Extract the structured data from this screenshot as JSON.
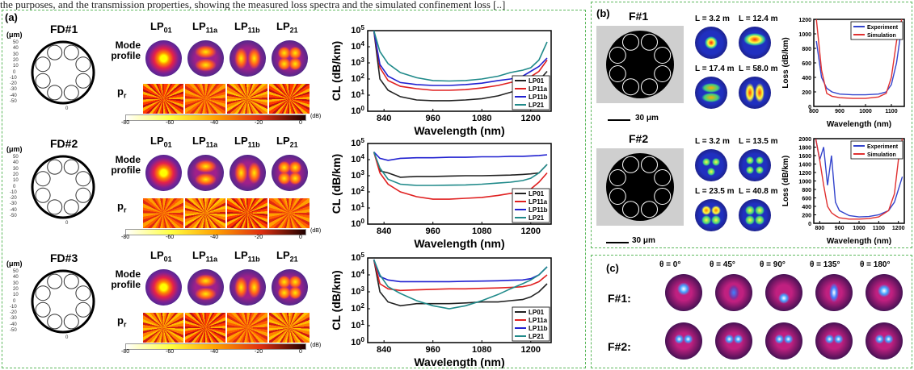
{
  "caption": "the purposes, and the transmission properties, showing the measured loss spectra and the simulated confinement loss [..]",
  "panel_a": {
    "label": "(a)",
    "unit_label": "(μm)",
    "y_ticks": [
      "50",
      "40",
      "30",
      "20",
      "10",
      "0",
      "-10",
      "-20",
      "-30",
      "-40",
      "-50"
    ],
    "x_tick": "0",
    "mode_profile_label": "Mode profile",
    "pr_label": "p",
    "pr_sub": "r",
    "mode_names": [
      {
        "base": "LP",
        "sub": "01"
      },
      {
        "base": "LP",
        "sub": "11a"
      },
      {
        "base": "LP",
        "sub": "11b"
      },
      {
        "base": "LP",
        "sub": "21"
      }
    ],
    "colorbar_ticks": [
      "-80",
      "-60",
      "-40",
      "-20",
      "0"
    ],
    "colorbar_unit": "(dB)",
    "designs": [
      {
        "name": "FD#1"
      },
      {
        "name": "FD#2"
      },
      {
        "name": "FD#3"
      }
    ]
  },
  "panel_b": {
    "label": "(b)",
    "fibers": [
      {
        "name": "F#1",
        "lengths": [
          "L = 3.2 m",
          "L = 12.4 m",
          "L = 17.4 m",
          "L = 58.0 m"
        ],
        "scale_bar": "30 μm"
      },
      {
        "name": "F#2",
        "lengths": [
          "L = 3.2 m",
          "L = 13.5 m",
          "L = 23.5 m",
          "L = 40.8 m"
        ],
        "scale_bar": "30 μm"
      }
    ]
  },
  "panel_c": {
    "label": "(c)",
    "angles": [
      "θ = 0°",
      "θ = 45°",
      "θ = 90°",
      "θ = 135°",
      "θ = 180°"
    ],
    "rows": [
      "F#1:",
      "F#2:"
    ]
  },
  "chart_data": [
    {
      "type": "line",
      "title": "",
      "xlabel": "Wavelength (nm)",
      "ylabel": "CL (dB/km)",
      "xlim": [
        800,
        1250
      ],
      "ylim": [
        1,
        100000
      ],
      "yscale": "log",
      "x_ticks": [
        "840",
        "960",
        "1080",
        "1200"
      ],
      "y_ticks": [
        "10^0",
        "10^1",
        "10^2",
        "10^3",
        "10^4",
        "10^5"
      ],
      "legend_position": "bottom-right",
      "series": [
        {
          "name": "LP01",
          "color": "#222222",
          "x": [
            815,
            830,
            850,
            880,
            920,
            960,
            1000,
            1040,
            1080,
            1120,
            1150,
            1180,
            1200,
            1220,
            1240
          ],
          "y": [
            100000,
            100,
            20,
            8,
            5,
            4.5,
            4.5,
            5,
            6,
            9,
            15,
            25,
            40,
            80,
            300
          ]
        },
        {
          "name": "LP11a",
          "color": "#e02020",
          "x": [
            815,
            830,
            850,
            880,
            920,
            960,
            1000,
            1040,
            1080,
            1120,
            1150,
            1180,
            1200,
            1220,
            1240
          ],
          "y": [
            100000,
            500,
            80,
            35,
            25,
            20,
            20,
            22,
            28,
            40,
            60,
            90,
            140,
            300,
            1500
          ]
        },
        {
          "name": "LP11b",
          "color": "#2020d0",
          "x": [
            815,
            830,
            850,
            880,
            920,
            960,
            1000,
            1040,
            1080,
            1120,
            1150,
            1180,
            1200,
            1220,
            1240
          ],
          "y": [
            100000,
            800,
            150,
            60,
            45,
            40,
            40,
            45,
            55,
            80,
            100,
            150,
            300,
            600,
            2000
          ]
        },
        {
          "name": "LP21",
          "color": "#208a8a",
          "x": [
            815,
            830,
            850,
            880,
            920,
            960,
            1000,
            1040,
            1080,
            1120,
            1150,
            1180,
            1200,
            1220,
            1240
          ],
          "y": [
            100000,
            5000,
            900,
            250,
            120,
            80,
            75,
            80,
            100,
            150,
            250,
            350,
            500,
            1500,
            20000
          ]
        }
      ]
    },
    {
      "type": "line",
      "title": "",
      "xlabel": "Wavelength (nm)",
      "ylabel": "CL (dB/km)",
      "xlim": [
        800,
        1250
      ],
      "ylim": [
        1,
        100000
      ],
      "yscale": "log",
      "x_ticks": [
        "840",
        "960",
        "1080",
        "1200"
      ],
      "y_ticks": [
        "10^0",
        "10^1",
        "10^2",
        "10^3",
        "10^4",
        "10^5"
      ],
      "legend_position": "bottom-right",
      "series": [
        {
          "name": "LP01",
          "color": "#222222",
          "x": [
            815,
            830,
            850,
            880,
            920,
            960,
            1000,
            1040,
            1080,
            1120,
            1150,
            1180,
            1200,
            1220,
            1240
          ],
          "y": [
            30000,
            2000,
            1500,
            800,
            900,
            900,
            950,
            1000,
            1000,
            1050,
            1100,
            1200,
            1300,
            1500,
            5000
          ]
        },
        {
          "name": "LP11a",
          "color": "#e02020",
          "x": [
            815,
            830,
            850,
            880,
            920,
            960,
            1000,
            1040,
            1080,
            1120,
            1150,
            1180,
            1200,
            1220,
            1240
          ],
          "y": [
            30000,
            1500,
            300,
            100,
            50,
            35,
            35,
            40,
            45,
            60,
            80,
            100,
            150,
            400,
            1500
          ]
        },
        {
          "name": "LP11b",
          "color": "#2020d0",
          "x": [
            815,
            830,
            850,
            880,
            920,
            960,
            1000,
            1040,
            1080,
            1120,
            1150,
            1180,
            1200,
            1220,
            1240
          ],
          "y": [
            30000,
            12000,
            9000,
            12000,
            13000,
            13000,
            14000,
            14000,
            15000,
            15000,
            16000,
            16000,
            17000,
            18000,
            20000
          ]
        },
        {
          "name": "LP21",
          "color": "#208a8a",
          "x": [
            815,
            830,
            850,
            880,
            920,
            960,
            1000,
            1040,
            1080,
            1120,
            1150,
            1180,
            1200,
            1220,
            1240
          ],
          "y": [
            30000,
            3000,
            600,
            300,
            250,
            250,
            260,
            270,
            300,
            350,
            400,
            500,
            700,
            1500,
            5000
          ]
        }
      ]
    },
    {
      "type": "line",
      "title": "",
      "xlabel": "Wavelength (nm)",
      "ylabel": "CL (dB/km)",
      "xlim": [
        800,
        1250
      ],
      "ylim": [
        1,
        100000
      ],
      "yscale": "log",
      "x_ticks": [
        "840",
        "960",
        "1080",
        "1200"
      ],
      "y_ticks": [
        "10^0",
        "10^1",
        "10^2",
        "10^3",
        "10^4",
        "10^5"
      ],
      "legend_position": "bottom-right",
      "series": [
        {
          "name": "LP01",
          "color": "#222222",
          "x": [
            815,
            830,
            850,
            880,
            920,
            960,
            1000,
            1040,
            1080,
            1120,
            1150,
            1180,
            1200,
            1220,
            1240
          ],
          "y": [
            80000,
            1000,
            250,
            150,
            200,
            200,
            200,
            220,
            250,
            250,
            300,
            350,
            500,
            1000,
            3000
          ]
        },
        {
          "name": "LP11a",
          "color": "#e02020",
          "x": [
            815,
            830,
            850,
            880,
            920,
            960,
            1000,
            1040,
            1080,
            1120,
            1150,
            1180,
            1200,
            1220,
            1240
          ],
          "y": [
            80000,
            3000,
            1500,
            1200,
            1300,
            1400,
            1500,
            1500,
            1600,
            1700,
            1800,
            2000,
            2500,
            4000,
            10000
          ]
        },
        {
          "name": "LP11b",
          "color": "#2020d0",
          "x": [
            815,
            830,
            850,
            880,
            920,
            960,
            1000,
            1040,
            1080,
            1120,
            1150,
            1180,
            1200,
            1220,
            1240
          ],
          "y": [
            80000,
            8000,
            5000,
            4000,
            4000,
            4000,
            4000,
            4200,
            4300,
            4500,
            4800,
            5000,
            6000,
            10000,
            30000
          ]
        },
        {
          "name": "LP21",
          "color": "#208a8a",
          "x": [
            815,
            830,
            850,
            880,
            920,
            960,
            1000,
            1040,
            1080,
            1120,
            1150,
            1180,
            1200,
            1220,
            1240
          ],
          "y": [
            80000,
            10000,
            2000,
            800,
            300,
            150,
            100,
            150,
            300,
            700,
            1500,
            3000,
            5000,
            10000,
            30000
          ]
        }
      ]
    },
    {
      "type": "line",
      "title": "",
      "xlabel": "Wavelength (nm)",
      "ylabel": "Loss (dB/km)",
      "xlim": [
        800,
        1150
      ],
      "ylim": [
        0,
        1200
      ],
      "x_ticks": [
        "800",
        "900",
        "1000",
        "1100"
      ],
      "y_ticks": [
        "0",
        "200",
        "400",
        "600",
        "800",
        "1000",
        "1200"
      ],
      "legend_position": "top-right",
      "series": [
        {
          "name": "Experiment",
          "color": "#3344cc",
          "x": [
            810,
            830,
            850,
            870,
            900,
            950,
            1000,
            1050,
            1080,
            1100,
            1120,
            1140
          ],
          "y": [
            900,
            400,
            250,
            200,
            170,
            160,
            160,
            170,
            200,
            300,
            600,
            1100
          ]
        },
        {
          "name": "Simulation",
          "color": "#e03030",
          "x": [
            810,
            830,
            850,
            870,
            900,
            950,
            1000,
            1050,
            1080,
            1100,
            1120,
            1140
          ],
          "y": [
            1200,
            500,
            180,
            140,
            120,
            110,
            110,
            130,
            180,
            400,
            900,
            1200
          ]
        }
      ]
    },
    {
      "type": "line",
      "title": "",
      "xlabel": "Wavelength (nm)",
      "ylabel": "Loss (dB/km)",
      "xlim": [
        770,
        1230
      ],
      "ylim": [
        0,
        2000
      ],
      "x_ticks": [
        "800",
        "900",
        "1000",
        "1100",
        "1200"
      ],
      "y_ticks": [
        "0",
        "200",
        "400",
        "600",
        "800",
        "1000",
        "1200",
        "1400",
        "1600",
        "1800",
        "2000"
      ],
      "legend_position": "top-right",
      "series": [
        {
          "name": "Experiment",
          "color": "#3344cc",
          "x": [
            780,
            800,
            820,
            840,
            860,
            880,
            900,
            950,
            1000,
            1050,
            1100,
            1150,
            1180,
            1200,
            1220
          ],
          "y": [
            2000,
            1500,
            1800,
            900,
            1600,
            500,
            300,
            180,
            150,
            160,
            200,
            300,
            500,
            800,
            1100
          ]
        },
        {
          "name": "Simulation",
          "color": "#e03030",
          "x": [
            780,
            800,
            820,
            840,
            860,
            880,
            900,
            950,
            1000,
            1050,
            1100,
            1150,
            1180,
            1200,
            1220
          ],
          "y": [
            2000,
            1500,
            900,
            400,
            250,
            180,
            130,
            100,
            100,
            110,
            150,
            300,
            700,
            1500,
            2000
          ]
        }
      ]
    }
  ]
}
